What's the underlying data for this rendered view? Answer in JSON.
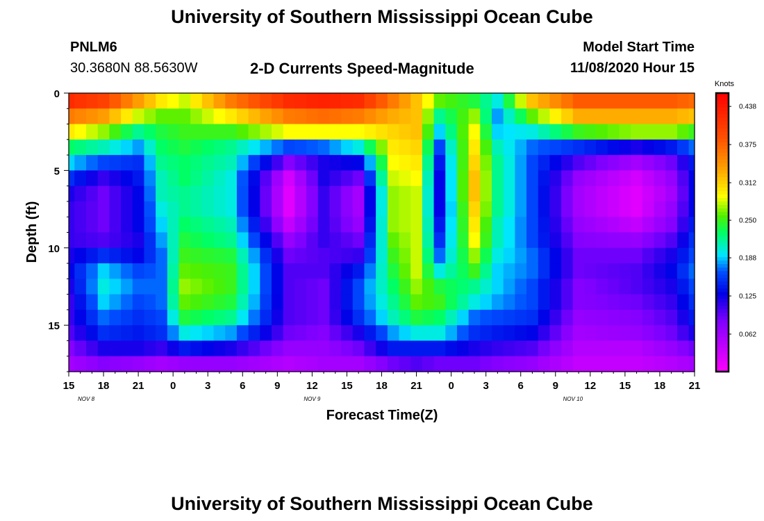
{
  "header": {
    "title": "University of Southern Mississippi Ocean Cube",
    "station_id": "PNLM6",
    "station_coords": "30.3680N 88.5630W",
    "plot_title": "2-D Currents Speed-Magnitude",
    "model_start_label": "Model Start Time",
    "model_start_value": "11/08/2020 Hour 15"
  },
  "footer": {
    "title": "University of Southern Mississippi Ocean Cube"
  },
  "chart_data": {
    "type": "heatmap",
    "xlabel": "Forecast Time(Z)",
    "ylabel": "Depth (ft)",
    "x_tick_labels": [
      "15",
      "18",
      "21",
      "0",
      "3",
      "6",
      "9",
      "12",
      "15",
      "18",
      "21",
      "0",
      "3",
      "6",
      "9",
      "12",
      "15",
      "18",
      "21"
    ],
    "date_labels": [
      {
        "label": "NOV  8",
        "hour_index": 1.5
      },
      {
        "label": "NOV  9",
        "hour_index": 21
      },
      {
        "label": "NOV  10",
        "hour_index": 43.5
      }
    ],
    "x_range_hours": [
      0,
      54
    ],
    "y_ticks": [
      0,
      5,
      10,
      15
    ],
    "ylim": [
      0,
      18
    ],
    "colorbar": {
      "unit": "Knots",
      "range": [
        0,
        0.46
      ],
      "tick_labels": [
        "0.438",
        "0.375",
        "0.312",
        "0.250",
        "0.188",
        "0.125",
        "0.062"
      ],
      "tick_values": [
        0.438,
        0.375,
        0.312,
        0.25,
        0.188,
        0.125,
        0.062
      ]
    },
    "depth_levels_ft": [
      0.5,
      1.5,
      2.5,
      3.5,
      4.5,
      5.5,
      6.5,
      7.5,
      8.5,
      9.5,
      10.5,
      11.5,
      12.5,
      13.5,
      14.5,
      15.5,
      16.5,
      17.5
    ],
    "profiles": [
      {
        "hour": 0,
        "speeds": [
          0.42,
          0.36,
          0.3,
          0.23,
          0.19,
          0.15,
          0.12,
          0.11,
          0.11,
          0.11,
          0.12,
          0.13,
          0.12,
          0.11,
          0.11,
          0.1,
          0.08,
          0.06
        ]
      },
      {
        "hour": 3,
        "speeds": [
          0.4,
          0.34,
          0.27,
          0.21,
          0.16,
          0.11,
          0.09,
          0.09,
          0.09,
          0.1,
          0.15,
          0.19,
          0.2,
          0.19,
          0.17,
          0.15,
          0.12,
          0.08
        ]
      },
      {
        "hour": 6,
        "speeds": [
          0.34,
          0.28,
          0.22,
          0.18,
          0.15,
          0.14,
          0.13,
          0.13,
          0.13,
          0.12,
          0.13,
          0.16,
          0.17,
          0.16,
          0.15,
          0.14,
          0.12,
          0.07
        ]
      },
      {
        "hour": 8,
        "speeds": [
          0.3,
          0.26,
          0.24,
          0.23,
          0.22,
          0.21,
          0.21,
          0.2,
          0.19,
          0.18,
          0.17,
          0.17,
          0.17,
          0.17,
          0.16,
          0.15,
          0.11,
          0.06
        ]
      },
      {
        "hour": 10,
        "speeds": [
          0.28,
          0.26,
          0.25,
          0.24,
          0.23,
          0.23,
          0.22,
          0.22,
          0.23,
          0.24,
          0.25,
          0.26,
          0.27,
          0.26,
          0.24,
          0.2,
          0.14,
          0.07
        ]
      },
      {
        "hour": 14,
        "speeds": [
          0.36,
          0.3,
          0.25,
          0.22,
          0.21,
          0.2,
          0.2,
          0.2,
          0.21,
          0.22,
          0.24,
          0.25,
          0.25,
          0.24,
          0.22,
          0.18,
          0.12,
          0.07
        ]
      },
      {
        "hour": 19,
        "speeds": [
          0.42,
          0.36,
          0.29,
          0.16,
          0.08,
          0.03,
          0.02,
          0.02,
          0.04,
          0.07,
          0.09,
          0.1,
          0.1,
          0.1,
          0.1,
          0.09,
          0.07,
          0.05
        ]
      },
      {
        "hour": 22,
        "speeds": [
          0.43,
          0.37,
          0.29,
          0.17,
          0.12,
          0.12,
          0.11,
          0.11,
          0.11,
          0.11,
          0.1,
          0.1,
          0.09,
          0.09,
          0.09,
          0.08,
          0.07,
          0.06
        ]
      },
      {
        "hour": 25,
        "speeds": [
          0.42,
          0.36,
          0.29,
          0.2,
          0.13,
          0.09,
          0.06,
          0.06,
          0.07,
          0.09,
          0.11,
          0.14,
          0.16,
          0.16,
          0.15,
          0.12,
          0.09,
          0.06
        ]
      },
      {
        "hour": 28,
        "speeds": [
          0.36,
          0.33,
          0.31,
          0.3,
          0.29,
          0.28,
          0.27,
          0.27,
          0.27,
          0.26,
          0.25,
          0.24,
          0.23,
          0.22,
          0.21,
          0.18,
          0.14,
          0.09
        ]
      },
      {
        "hour": 30,
        "speeds": [
          0.32,
          0.32,
          0.32,
          0.31,
          0.3,
          0.29,
          0.28,
          0.28,
          0.28,
          0.28,
          0.28,
          0.28,
          0.27,
          0.26,
          0.24,
          0.2,
          0.14,
          0.1
        ]
      },
      {
        "hour": 32,
        "speeds": [
          0.26,
          0.22,
          0.19,
          0.16,
          0.14,
          0.13,
          0.13,
          0.13,
          0.14,
          0.15,
          0.17,
          0.2,
          0.24,
          0.25,
          0.23,
          0.2,
          0.14,
          0.09
        ]
      },
      {
        "hour": 35,
        "speeds": [
          0.24,
          0.27,
          0.29,
          0.3,
          0.31,
          0.32,
          0.32,
          0.31,
          0.3,
          0.29,
          0.27,
          0.25,
          0.22,
          0.2,
          0.17,
          0.15,
          0.12,
          0.09
        ]
      },
      {
        "hour": 37,
        "speeds": [
          0.2,
          0.18,
          0.19,
          0.21,
          0.22,
          0.22,
          0.22,
          0.22,
          0.21,
          0.21,
          0.2,
          0.19,
          0.19,
          0.18,
          0.16,
          0.14,
          0.11,
          0.08
        ]
      },
      {
        "hour": 40,
        "speeds": [
          0.32,
          0.26,
          0.2,
          0.17,
          0.16,
          0.16,
          0.16,
          0.16,
          0.16,
          0.16,
          0.17,
          0.17,
          0.16,
          0.16,
          0.15,
          0.13,
          0.1,
          0.07
        ]
      },
      {
        "hour": 44,
        "speeds": [
          0.38,
          0.33,
          0.25,
          0.15,
          0.1,
          0.07,
          0.06,
          0.06,
          0.07,
          0.08,
          0.09,
          0.09,
          0.08,
          0.08,
          0.07,
          0.06,
          0.05,
          0.04
        ]
      },
      {
        "hour": 49,
        "speeds": [
          0.38,
          0.33,
          0.27,
          0.12,
          0.06,
          0.03,
          0.02,
          0.02,
          0.04,
          0.07,
          0.09,
          0.1,
          0.1,
          0.09,
          0.08,
          0.07,
          0.05,
          0.04
        ]
      },
      {
        "hour": 52,
        "speeds": [
          0.38,
          0.33,
          0.27,
          0.14,
          0.09,
          0.07,
          0.06,
          0.07,
          0.08,
          0.1,
          0.12,
          0.13,
          0.12,
          0.11,
          0.1,
          0.09,
          0.07,
          0.05
        ]
      },
      {
        "hour": 54,
        "speeds": [
          0.37,
          0.32,
          0.25,
          0.17,
          0.14,
          0.13,
          0.13,
          0.13,
          0.14,
          0.15,
          0.16,
          0.17,
          0.16,
          0.15,
          0.14,
          0.12,
          0.09,
          0.06
        ]
      }
    ]
  }
}
